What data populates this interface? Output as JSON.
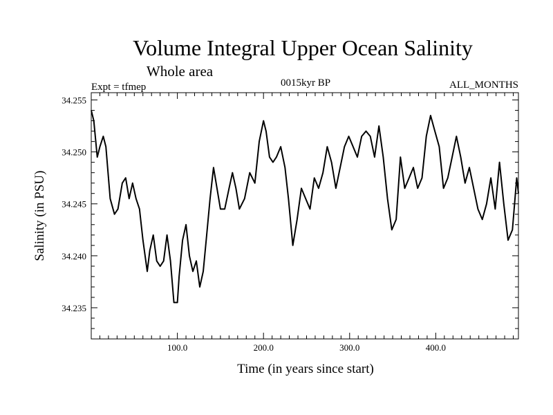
{
  "chart_data": {
    "type": "line",
    "title": "Volume Integral Upper Ocean Salinity",
    "subtitle": "Whole area",
    "header_left": "Expt = tfmep",
    "header_center": "0015kyr BP",
    "header_right": "ALL_MONTHS",
    "xlabel": "Time (in years since start)",
    "ylabel": "Salinity (in PSU)",
    "xlim": [
      0,
      496
    ],
    "ylim": [
      34.232,
      34.2557
    ],
    "x_ticks": [
      100,
      200,
      300,
      400
    ],
    "x_tick_labels": [
      "100.0",
      "200.0",
      "300.0",
      "400.0"
    ],
    "y_ticks": [
      34.235,
      34.24,
      34.245,
      34.25,
      34.255
    ],
    "y_tick_labels": [
      "34.235",
      "34.240",
      "34.245",
      "34.250",
      "34.255"
    ],
    "series": [
      {
        "x": [
          0,
          3,
          7,
          10,
          14,
          17,
          22,
          27,
          31,
          36,
          40,
          44,
          48,
          52,
          56,
          60,
          65,
          68,
          72,
          76,
          80,
          84,
          88,
          92,
          96,
          100,
          102,
          106,
          110,
          114,
          118,
          122,
          126,
          130,
          134,
          138,
          142,
          146,
          150,
          155,
          160,
          164,
          168,
          172,
          178,
          184,
          190,
          195,
          200,
          203,
          207,
          211,
          215,
          220,
          225,
          229,
          234,
          239,
          244,
          249,
          254,
          259,
          264,
          269,
          274,
          279,
          284,
          289,
          294,
          299,
          304,
          309,
          314,
          319,
          324,
          329,
          334,
          339,
          344,
          349,
          354,
          359,
          364,
          369,
          374,
          379,
          384,
          389,
          394,
          399,
          404,
          409,
          414,
          419,
          424,
          429,
          434,
          439,
          444,
          449,
          454,
          459,
          464,
          469,
          474,
          479,
          484,
          489,
          494,
          496
        ],
        "y": [
          34.254,
          34.253,
          34.2495,
          34.2505,
          34.2515,
          34.2505,
          34.2455,
          34.244,
          34.2445,
          34.247,
          34.2475,
          34.2455,
          34.247,
          34.2455,
          34.2445,
          34.2415,
          34.2385,
          34.2405,
          34.242,
          34.2395,
          34.239,
          34.2395,
          34.242,
          34.2395,
          34.2355,
          34.2355,
          34.238,
          34.2415,
          34.243,
          34.24,
          34.2385,
          34.2395,
          34.237,
          34.2385,
          34.242,
          34.2455,
          34.2485,
          34.2465,
          34.2445,
          34.2445,
          34.2465,
          34.248,
          34.2465,
          34.2445,
          34.2455,
          34.248,
          34.247,
          34.251,
          34.253,
          34.252,
          34.2495,
          34.249,
          34.2495,
          34.2505,
          34.2485,
          34.2455,
          34.241,
          34.2435,
          34.2465,
          34.2455,
          34.2445,
          34.2475,
          34.2465,
          34.248,
          34.2505,
          34.249,
          34.2465,
          34.2485,
          34.2505,
          34.2515,
          34.2505,
          34.2495,
          34.2515,
          34.252,
          34.2515,
          34.2495,
          34.2525,
          34.2495,
          34.2455,
          34.2425,
          34.2435,
          34.2495,
          34.2465,
          34.2475,
          34.2485,
          34.2465,
          34.2475,
          34.2515,
          34.2535,
          34.252,
          34.2505,
          34.2465,
          34.2475,
          34.2495,
          34.2515,
          34.2495,
          34.247,
          34.2485,
          34.2465,
          34.2445,
          34.2435,
          34.245,
          34.2475,
          34.2445,
          34.249,
          34.245,
          34.2415,
          34.2425,
          34.2475,
          34.246
        ]
      }
    ]
  }
}
